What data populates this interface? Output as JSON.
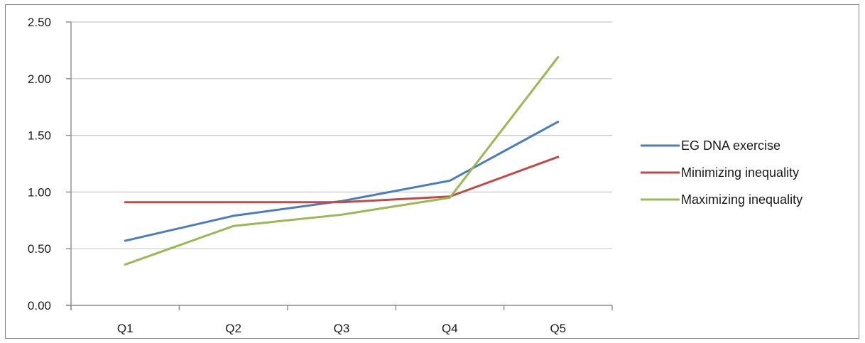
{
  "chart_data": {
    "type": "line",
    "categories": [
      "Q1",
      "Q2",
      "Q3",
      "Q4",
      "Q5"
    ],
    "series": [
      {
        "name": "EG DNA exercise",
        "values": [
          0.57,
          0.79,
          0.92,
          1.1,
          1.62
        ],
        "color": "#4a7ebb"
      },
      {
        "name": "Minimizing inequality",
        "values": [
          0.91,
          0.91,
          0.91,
          0.96,
          1.31
        ],
        "color": "#be4b48"
      },
      {
        "name": "Maximizing inequality",
        "values": [
          0.36,
          0.7,
          0.8,
          0.95,
          2.19
        ],
        "color": "#98b954"
      }
    ],
    "ylim": [
      0,
      2.5
    ],
    "yticks": [
      "0.00",
      "0.50",
      "1.00",
      "1.50",
      "2.00",
      "2.50"
    ],
    "grid": true,
    "legend_position": "right"
  }
}
